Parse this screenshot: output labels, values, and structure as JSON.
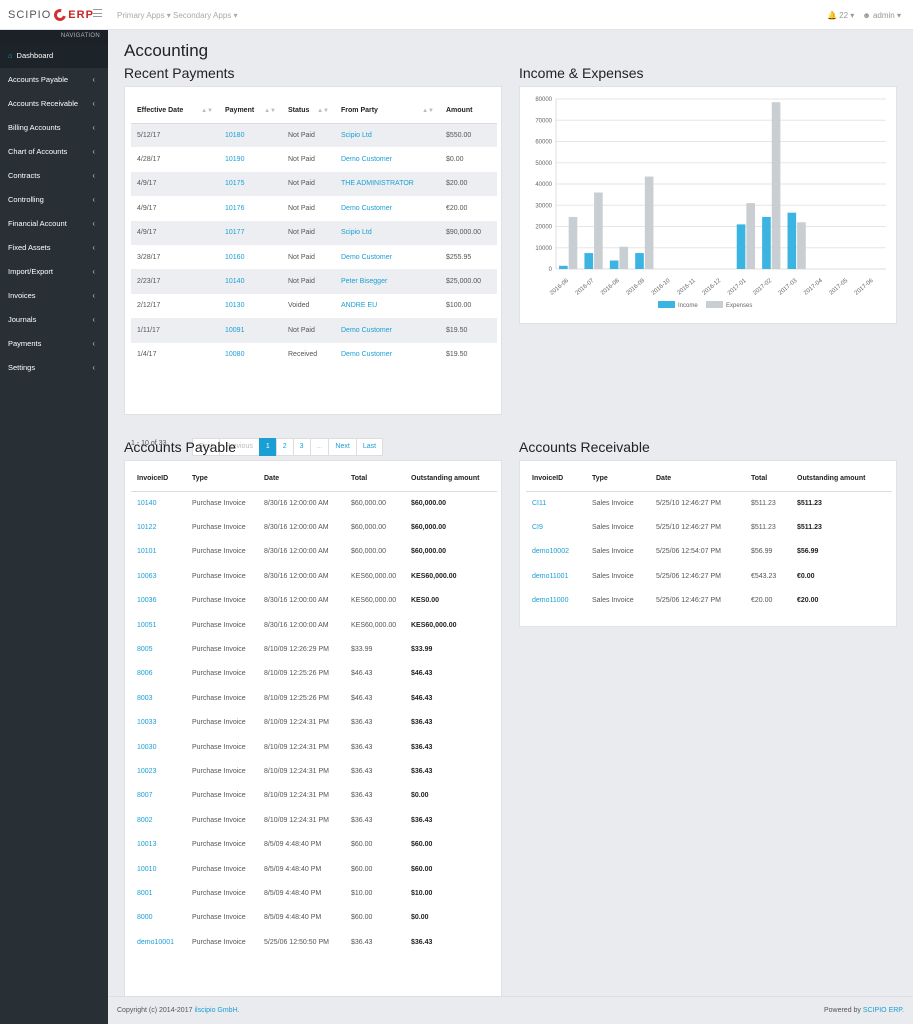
{
  "brand": {
    "name": "SCIPIO",
    "suffix": "ERP"
  },
  "topbar": {
    "primary_apps": "Primary Apps ▾",
    "secondary_apps": "Secondary Apps ▾",
    "notifications": "22 ▾",
    "user": "admin ▾"
  },
  "sidebar": {
    "header": "NAVIGATION",
    "items": [
      {
        "label": "Dashboard"
      },
      {
        "label": "Accounts Payable"
      },
      {
        "label": "Accounts Receivable"
      },
      {
        "label": "Billing Accounts"
      },
      {
        "label": "Chart of Accounts"
      },
      {
        "label": "Contracts"
      },
      {
        "label": "Controlling"
      },
      {
        "label": "Financial Account"
      },
      {
        "label": "Fixed Assets"
      },
      {
        "label": "Import/Export"
      },
      {
        "label": "Invoices"
      },
      {
        "label": "Journals"
      },
      {
        "label": "Payments"
      },
      {
        "label": "Settings"
      }
    ]
  },
  "page_title": "Accounting",
  "recent_payments": {
    "title": "Recent Payments",
    "columns": [
      "Effective Date",
      "Payment",
      "Status",
      "From Party",
      "Amount"
    ],
    "rows": [
      [
        "5/12/17",
        "10180",
        "Not Paid",
        "Scipio Ltd",
        "$550.00"
      ],
      [
        "4/28/17",
        "10190",
        "Not Paid",
        "Demo Customer",
        "$0.00"
      ],
      [
        "4/9/17",
        "10175",
        "Not Paid",
        "THE ADMINISTRATOR",
        "$20.00"
      ],
      [
        "4/9/17",
        "10176",
        "Not Paid",
        "Demo Customer",
        "€20.00"
      ],
      [
        "4/9/17",
        "10177",
        "Not Paid",
        "Scipio Ltd",
        "$90,000.00"
      ],
      [
        "3/28/17",
        "10160",
        "Not Paid",
        "Demo Customer",
        "$255.95"
      ],
      [
        "2/23/17",
        "10140",
        "Not Paid",
        "Peter Bisegger",
        "$25,000.00"
      ],
      [
        "2/12/17",
        "10130",
        "Voided",
        "ANDRE EU",
        "$100.00"
      ],
      [
        "1/11/17",
        "10091",
        "Not Paid",
        "Demo Customer",
        "$19.50"
      ],
      [
        "1/4/17",
        "10080",
        "Received",
        "Demo Customer",
        "$19.50"
      ]
    ],
    "pager": {
      "summary": "1 - 10 of 33",
      "first": "First",
      "previous": "Previous",
      "pages": [
        "1",
        "2",
        "3",
        "..."
      ],
      "next": "Next",
      "last": "Last"
    }
  },
  "income_expenses": {
    "title": "Income & Expenses",
    "chart_data": {
      "type": "bar",
      "categories": [
        "2016-06",
        "2016-07",
        "2016-08",
        "2016-09",
        "2016-10",
        "2016-11",
        "2016-12",
        "2017-01",
        "2017-02",
        "2017-03",
        "2017-04",
        "2017-05",
        "2017-06"
      ],
      "series": [
        {
          "name": "Income",
          "color": "#3cb4e2",
          "values": [
            1500,
            7500,
            4000,
            7500,
            0,
            0,
            0,
            21000,
            24500,
            26500,
            0,
            0,
            0
          ]
        },
        {
          "name": "Expenses",
          "color": "#c9ced2",
          "values": [
            24500,
            36000,
            10500,
            43500,
            0,
            0,
            0,
            31000,
            78500,
            22000,
            0,
            0,
            0
          ]
        }
      ],
      "y_ticks": [
        "0",
        "10000",
        "20000",
        "30000",
        "40000",
        "50000",
        "60000",
        "70000",
        "80000"
      ],
      "ylim": [
        0,
        80000
      ],
      "legend_position": "bottom",
      "grid": true
    }
  },
  "accounts_payable": {
    "title": "Accounts Payable",
    "columns": [
      "InvoiceID",
      "Type",
      "Date",
      "Total",
      "Outstanding amount"
    ],
    "rows": [
      [
        "10140",
        "Purchase Invoice",
        "8/30/16 12:00:00 AM",
        "$60,000.00",
        "$60,000.00"
      ],
      [
        "10122",
        "Purchase Invoice",
        "8/30/16 12:00:00 AM",
        "$60,000.00",
        "$60,000.00"
      ],
      [
        "10101",
        "Purchase Invoice",
        "8/30/16 12:00:00 AM",
        "$60,000.00",
        "$60,000.00"
      ],
      [
        "10063",
        "Purchase Invoice",
        "8/30/16 12:00:00 AM",
        "KES60,000.00",
        "KES60,000.00"
      ],
      [
        "10036",
        "Purchase Invoice",
        "8/30/16 12:00:00 AM",
        "KES60,000.00",
        "KES0.00"
      ],
      [
        "10051",
        "Purchase Invoice",
        "8/30/16 12:00:00 AM",
        "KES60,000.00",
        "KES60,000.00"
      ],
      [
        "8005",
        "Purchase Invoice",
        "8/10/09 12:26:29 PM",
        "$33.99",
        "$33.99"
      ],
      [
        "8006",
        "Purchase Invoice",
        "8/10/09 12:25:26 PM",
        "$46.43",
        "$46.43"
      ],
      [
        "8003",
        "Purchase Invoice",
        "8/10/09 12:25:26 PM",
        "$46.43",
        "$46.43"
      ],
      [
        "10033",
        "Purchase Invoice",
        "8/10/09 12:24:31 PM",
        "$36.43",
        "$36.43"
      ],
      [
        "10030",
        "Purchase Invoice",
        "8/10/09 12:24:31 PM",
        "$36.43",
        "$36.43"
      ],
      [
        "10023",
        "Purchase Invoice",
        "8/10/09 12:24:31 PM",
        "$36.43",
        "$36.43"
      ],
      [
        "8007",
        "Purchase Invoice",
        "8/10/09 12:24:31 PM",
        "$36.43",
        "$0.00"
      ],
      [
        "8002",
        "Purchase Invoice",
        "8/10/09 12:24:31 PM",
        "$36.43",
        "$36.43"
      ],
      [
        "10013",
        "Purchase Invoice",
        "8/5/09 4:48:40 PM",
        "$60.00",
        "$60.00"
      ],
      [
        "10010",
        "Purchase Invoice",
        "8/5/09 4:48:40 PM",
        "$60.00",
        "$60.00"
      ],
      [
        "8001",
        "Purchase Invoice",
        "8/5/09 4:48:40 PM",
        "$10.00",
        "$10.00"
      ],
      [
        "8000",
        "Purchase Invoice",
        "8/5/09 4:48:40 PM",
        "$60.00",
        "$0.00"
      ],
      [
        "demo10001",
        "Purchase Invoice",
        "5/25/06 12:50:50 PM",
        "$36.43",
        "$36.43"
      ]
    ]
  },
  "accounts_receivable": {
    "title": "Accounts Receivable",
    "columns": [
      "InvoiceID",
      "Type",
      "Date",
      "Total",
      "Outstanding amount"
    ],
    "rows": [
      [
        "CI11",
        "Sales Invoice",
        "5/25/10 12:46:27 PM",
        "$511.23",
        "$511.23"
      ],
      [
        "CI9",
        "Sales Invoice",
        "5/25/10 12:46:27 PM",
        "$511.23",
        "$511.23"
      ],
      [
        "demo10002",
        "Sales Invoice",
        "5/25/06 12:54:07 PM",
        "$56.99",
        "$56.99"
      ],
      [
        "demo11001",
        "Sales Invoice",
        "5/25/06 12:46:27 PM",
        "€543.23",
        "€0.00"
      ],
      [
        "demo11000",
        "Sales Invoice",
        "5/25/06 12:46:27 PM",
        "€20.00",
        "€20.00"
      ]
    ]
  },
  "footer": {
    "copyright": "Copyright (c) 2014-2017",
    "company": "ilscipio GmbH.",
    "powered_by": "Powered by",
    "powered_link": "SCIPIO ERP."
  }
}
